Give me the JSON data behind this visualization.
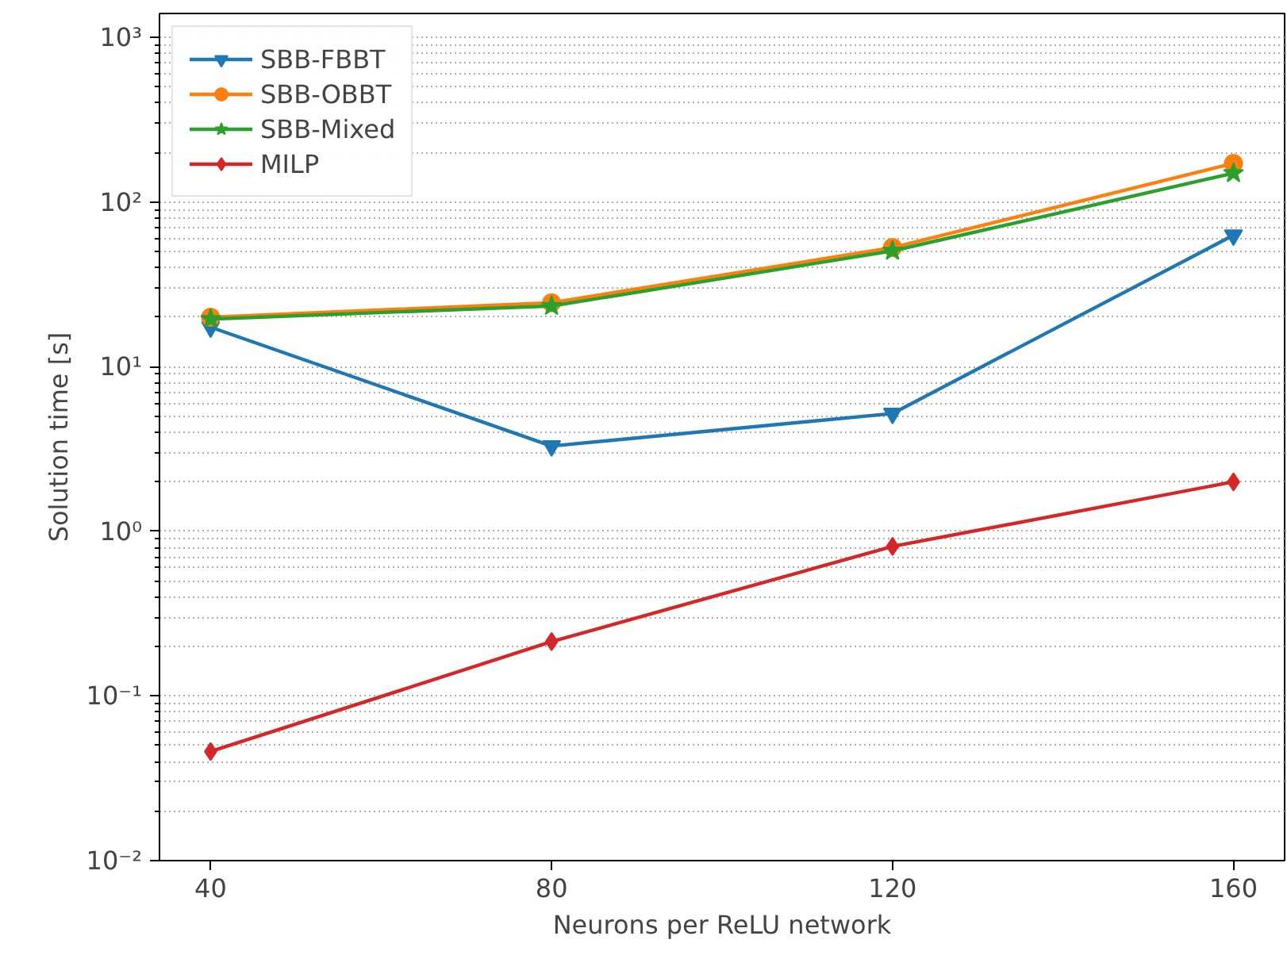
{
  "chart_data": {
    "type": "line",
    "xlabel": "Neurons per ReLU network",
    "ylabel": "Solution time [s]",
    "x": [
      40,
      80,
      120,
      160
    ],
    "series": [
      {
        "name": "SBB-FBBT",
        "color": "#1f77b4",
        "marker": "triangle_down",
        "values": [
          17.4,
          3.3,
          5.2,
          63
        ]
      },
      {
        "name": "SBB-OBBT",
        "color": "#ff7f0e",
        "marker": "circle",
        "values": [
          20,
          24.5,
          53,
          172
        ]
      },
      {
        "name": "SBB-Mixed",
        "color": "#2ca02c",
        "marker": "star",
        "values": [
          19.5,
          23.4,
          50.6,
          150
        ]
      },
      {
        "name": "MILP",
        "color": "#d62728",
        "marker": "diamond",
        "values": [
          0.046,
          0.214,
          0.81,
          2.0
        ]
      }
    ],
    "log": "y",
    "xlim": [
      34,
      166
    ],
    "xticks": [
      40,
      80,
      120,
      160
    ],
    "ylim": [
      0.01,
      1400
    ],
    "yticks": [
      {
        "value": 0.01,
        "label": "10⁻²"
      },
      {
        "value": 0.1,
        "label": "10⁻¹"
      },
      {
        "value": 1,
        "label": "10⁰"
      },
      {
        "value": 10,
        "label": "10¹"
      },
      {
        "value": 100,
        "label": "10²"
      },
      {
        "value": 1000,
        "label": "10³"
      }
    ],
    "grid": "y",
    "legend": "top left",
    "line_style": "solid"
  }
}
